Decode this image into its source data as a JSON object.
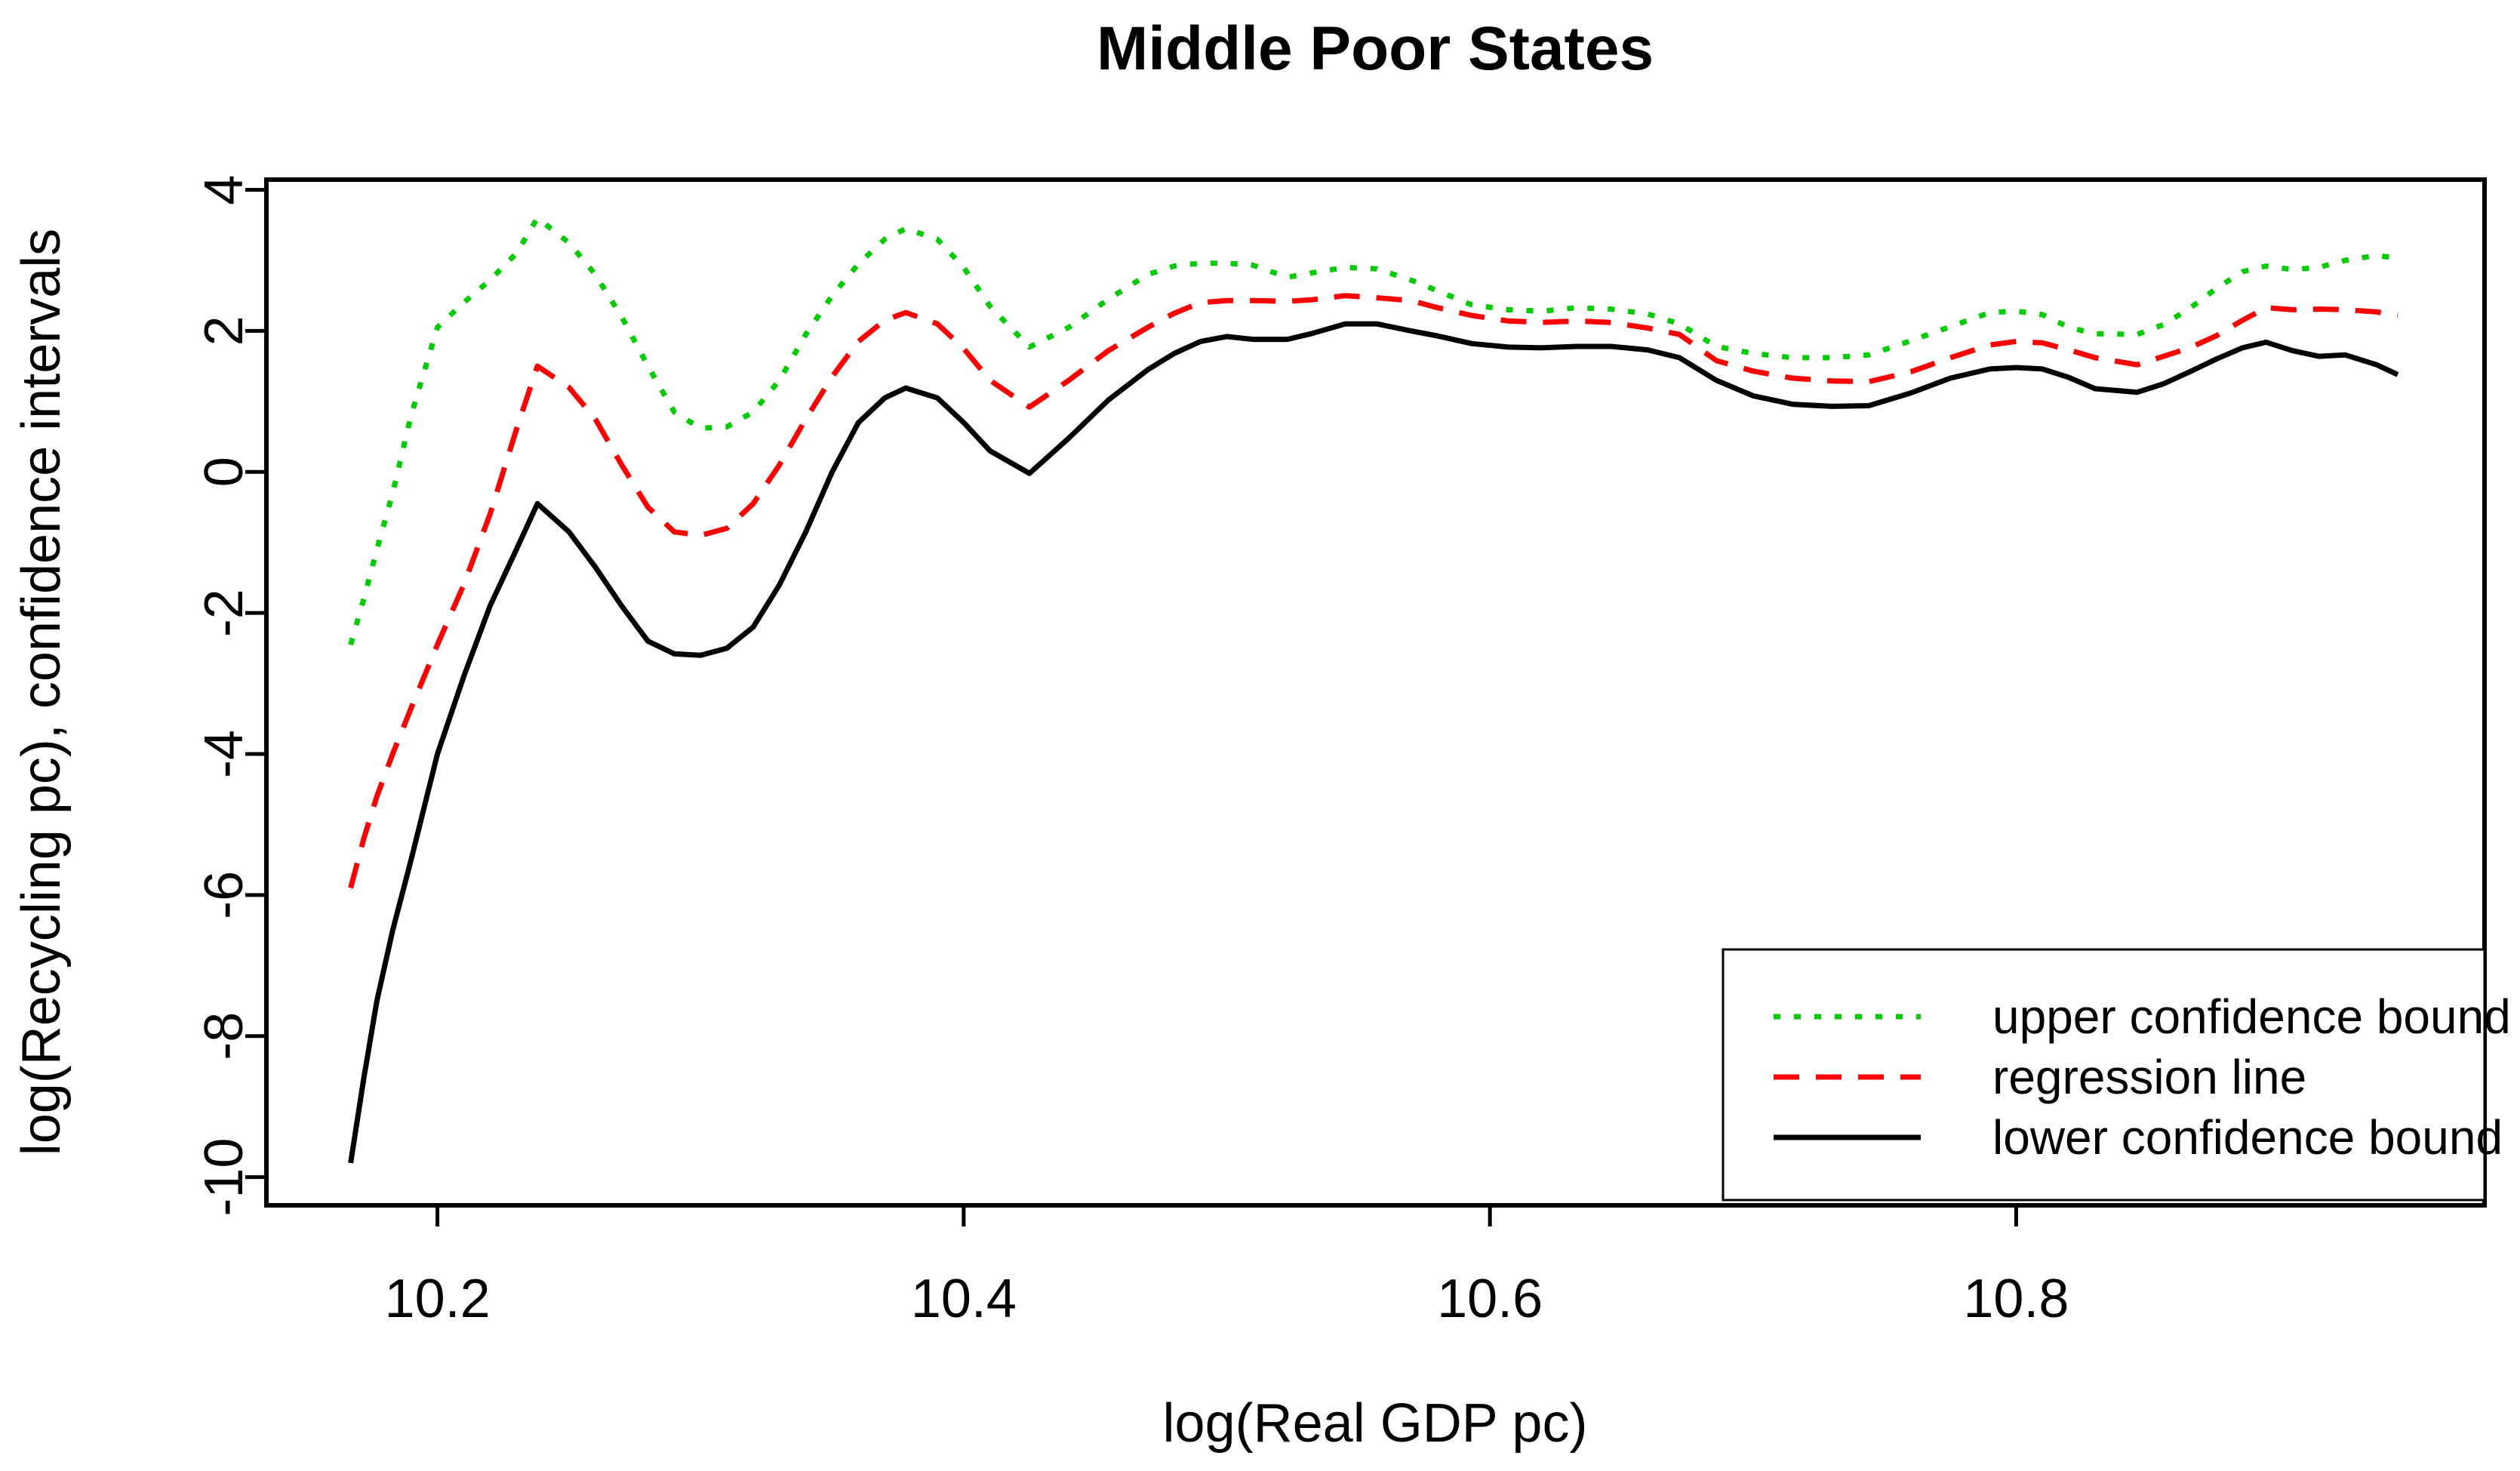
{
  "chart_data": {
    "type": "line",
    "title": "Middle Poor States",
    "xlabel": "log(Real GDP pc)",
    "ylabel": "log(Recycling pc), confidence intervals",
    "xlim": [
      10.135,
      10.978
    ],
    "ylim": [
      -10.4,
      4.145
    ],
    "grid": false,
    "background_color": "#FFFFFF",
    "axis_color": "#000000",
    "x_ticks": {
      "values": [
        10.2,
        10.4,
        10.6,
        10.8
      ],
      "labels": [
        "10.2",
        "10.4",
        "10.6",
        "10.8"
      ]
    },
    "y_ticks": {
      "values": [
        4,
        2,
        0,
        -2,
        -4,
        -6,
        -8,
        -10
      ],
      "labels": [
        "4",
        "2",
        "0",
        "-2",
        "-4",
        "-6",
        "-8",
        "-10"
      ]
    },
    "x": [
      10.167,
      10.172,
      10.177,
      10.183,
      10.19,
      10.2,
      10.21,
      10.22,
      10.23,
      10.238,
      10.25,
      10.26,
      10.27,
      10.28,
      10.29,
      10.3,
      10.31,
      10.32,
      10.33,
      10.34,
      10.35,
      10.36,
      10.37,
      10.378,
      10.39,
      10.4,
      10.41,
      10.425,
      10.44,
      10.455,
      10.47,
      10.48,
      10.49,
      10.5,
      10.51,
      10.523,
      10.532,
      10.545,
      10.557,
      10.57,
      10.58,
      10.593,
      10.607,
      10.62,
      10.633,
      10.646,
      10.66,
      10.672,
      10.686,
      10.7,
      10.715,
      10.73,
      10.744,
      10.76,
      10.775,
      10.79,
      10.8,
      10.81,
      10.82,
      10.83,
      10.846,
      10.856,
      10.866,
      10.876,
      10.886,
      10.895,
      10.905,
      10.915,
      10.925,
      10.937,
      10.945
    ],
    "series": [
      {
        "name": "upper confidence bound",
        "color": "#00CD00",
        "line_style": "dotted",
        "values": [
          -2.45,
          -1.8,
          -1.1,
          -0.3,
          0.8,
          2.05,
          2.4,
          2.72,
          3.1,
          3.6,
          3.25,
          2.8,
          2.2,
          1.5,
          0.85,
          0.62,
          0.64,
          0.85,
          1.3,
          1.95,
          2.5,
          2.95,
          3.3,
          3.45,
          3.3,
          2.9,
          2.35,
          1.77,
          2.05,
          2.45,
          2.8,
          2.92,
          2.96,
          2.96,
          2.93,
          2.76,
          2.82,
          2.9,
          2.88,
          2.72,
          2.57,
          2.37,
          2.3,
          2.28,
          2.33,
          2.31,
          2.24,
          2.1,
          1.78,
          1.68,
          1.62,
          1.62,
          1.66,
          1.86,
          2.06,
          2.26,
          2.28,
          2.23,
          2.05,
          1.96,
          1.95,
          2.09,
          2.32,
          2.6,
          2.84,
          2.92,
          2.87,
          2.9,
          3.0,
          3.07,
          3.03
        ]
      },
      {
        "name": "regression line",
        "color": "#FF0000",
        "line_style": "dashed",
        "values": [
          -5.9,
          -5.2,
          -4.6,
          -4.0,
          -3.35,
          -2.45,
          -1.6,
          -0.6,
          0.6,
          1.5,
          1.2,
          0.75,
          0.1,
          -0.5,
          -0.85,
          -0.9,
          -0.8,
          -0.45,
          0.1,
          0.75,
          1.35,
          1.85,
          2.15,
          2.26,
          2.1,
          1.75,
          1.3,
          0.92,
          1.3,
          1.72,
          2.05,
          2.25,
          2.4,
          2.43,
          2.43,
          2.42,
          2.44,
          2.5,
          2.47,
          2.43,
          2.33,
          2.22,
          2.14,
          2.12,
          2.14,
          2.12,
          2.04,
          1.95,
          1.58,
          1.43,
          1.33,
          1.29,
          1.28,
          1.42,
          1.62,
          1.8,
          1.85,
          1.83,
          1.73,
          1.62,
          1.52,
          1.64,
          1.76,
          1.93,
          2.15,
          2.33,
          2.3,
          2.31,
          2.3,
          2.27,
          2.22
        ]
      },
      {
        "name": "lower confidence bound",
        "color": "#000000",
        "line_style": "solid",
        "values": [
          -9.8,
          -8.6,
          -7.5,
          -6.5,
          -5.5,
          -4.0,
          -2.9,
          -1.9,
          -1.1,
          -0.45,
          -0.85,
          -1.35,
          -1.9,
          -2.4,
          -2.58,
          -2.6,
          -2.5,
          -2.2,
          -1.6,
          -0.85,
          0.0,
          0.7,
          1.05,
          1.19,
          1.05,
          0.7,
          0.3,
          -0.02,
          0.48,
          1.02,
          1.45,
          1.68,
          1.85,
          1.92,
          1.88,
          1.88,
          1.96,
          2.1,
          2.1,
          2.0,
          1.93,
          1.82,
          1.77,
          1.76,
          1.78,
          1.78,
          1.73,
          1.62,
          1.3,
          1.08,
          0.96,
          0.93,
          0.94,
          1.12,
          1.33,
          1.46,
          1.48,
          1.46,
          1.34,
          1.18,
          1.13,
          1.25,
          1.42,
          1.6,
          1.76,
          1.84,
          1.72,
          1.64,
          1.66,
          1.52,
          1.38
        ]
      }
    ],
    "legend": {
      "position": "bottom-right",
      "entries": [
        {
          "label": "upper confidence bound",
          "color": "#00CD00",
          "line_style": "dotted"
        },
        {
          "label": "regression line",
          "color": "#FF0000",
          "line_style": "dashed"
        },
        {
          "label": "lower confidence bound",
          "color": "#000000",
          "line_style": "solid"
        }
      ]
    }
  }
}
